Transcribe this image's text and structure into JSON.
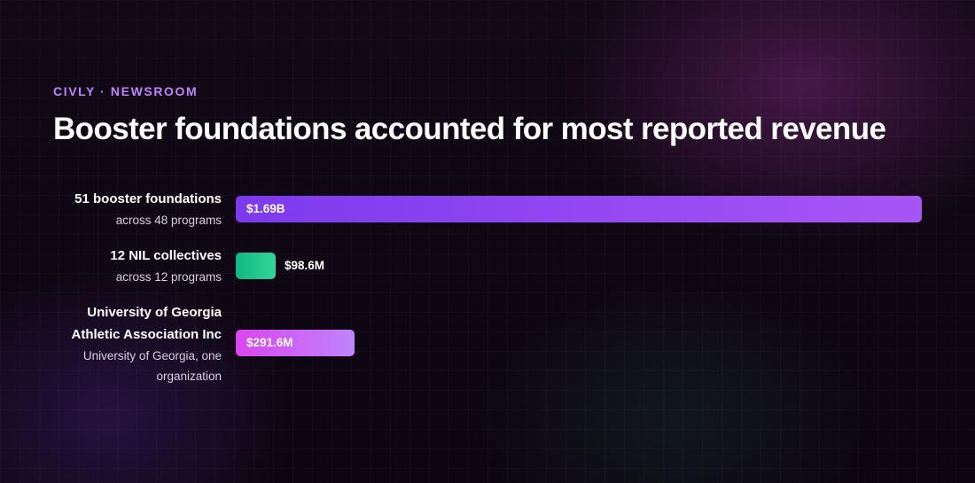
{
  "header": {
    "kicker": "CIVLY · NEWSROOM",
    "headline": "Booster foundations accounted for most reported revenue"
  },
  "colors": {
    "kicker": "#c084fc",
    "bar_booster": [
      "#7c3aed",
      "#a855f7"
    ],
    "bar_nil": [
      "#10b981",
      "#34d399"
    ],
    "bar_uga": [
      "#d946ef",
      "#c084fc"
    ]
  },
  "chart_data": {
    "type": "bar",
    "orientation": "horizontal",
    "title": "Booster foundations accounted for most reported revenue",
    "xlim": [
      0,
      1.69
    ],
    "unit": "billion USD",
    "categories": [
      {
        "label": "51 booster foundations",
        "sublabel": "across 48 programs",
        "value": 1.69,
        "value_label": "$1.69B",
        "label_position": "inside"
      },
      {
        "label": "12 NIL collectives",
        "sublabel": "across 12 programs",
        "value": 0.0986,
        "value_label": "$98.6M",
        "label_position": "outside"
      },
      {
        "label": "University of Georgia Athletic Association Inc",
        "sublabel": "University of Georgia, one organization",
        "value": 0.2916,
        "value_label": "$291.6M",
        "label_position": "inside"
      }
    ]
  }
}
